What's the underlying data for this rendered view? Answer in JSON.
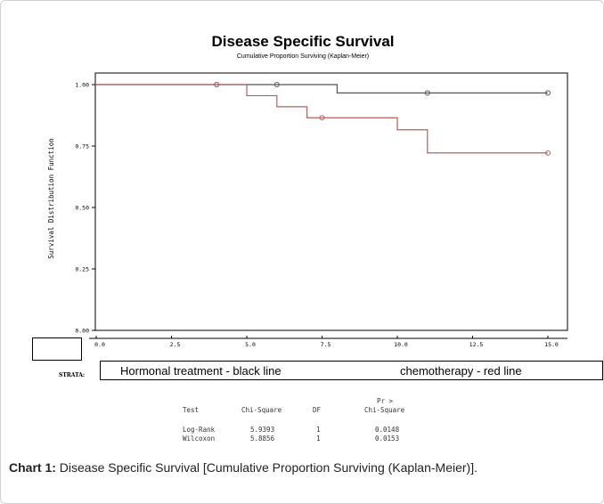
{
  "chart_data": {
    "type": "line",
    "title": "Disease Specific Survival",
    "subtitle": "Cumulative Proportion Surviving (Kaplan-Meier)",
    "ylabel": "Survival Distribution Function",
    "xlabel": "",
    "xlim": [
      0,
      15
    ],
    "ylim": [
      0,
      1
    ],
    "x_ticks": [
      "0.0",
      "2.5",
      "5.0",
      "7.5",
      "10.0",
      "12.5",
      "15.0"
    ],
    "y_ticks": [
      "0.00",
      "0.25",
      "0.50",
      "0.75",
      "1.00"
    ],
    "step": true,
    "grid": false,
    "series": [
      {
        "color": "#555555",
        "x": [
          0,
          8,
          15
        ],
        "y": [
          1.0,
          0.966,
          0.966
        ],
        "censored": [
          [
            4,
            1.0
          ],
          [
            6,
            1.0
          ],
          [
            11,
            0.966
          ],
          [
            15,
            0.966
          ]
        ]
      },
      {
        "color": "#b06060",
        "x": [
          0,
          5,
          6,
          7,
          10,
          11,
          15
        ],
        "y": [
          1.0,
          0.955,
          0.91,
          0.865,
          0.816,
          0.722,
          0.722
        ],
        "censored": [
          [
            4,
            1.0
          ],
          [
            7.5,
            0.865
          ],
          [
            15,
            0.722
          ]
        ]
      }
    ]
  },
  "strata": {
    "label": "STRATA:",
    "black": "Hormonal treatment - black line",
    "red": "chemotherapy - red line"
  },
  "stats": {
    "header_pr": "Pr >",
    "headers": [
      "Test",
      "Chi-Square",
      "DF",
      "Chi-Square"
    ],
    "rows": [
      [
        "Log-Rank",
        "5.9393",
        "1",
        "0.0148"
      ],
      [
        "Wilcoxon",
        "5.8856",
        "1",
        "0.0153"
      ]
    ]
  },
  "caption": {
    "label": "Chart 1:",
    "text": " Disease Specific Survival [Cumulative Proportion Surviving (Kaplan-Meier)]."
  }
}
